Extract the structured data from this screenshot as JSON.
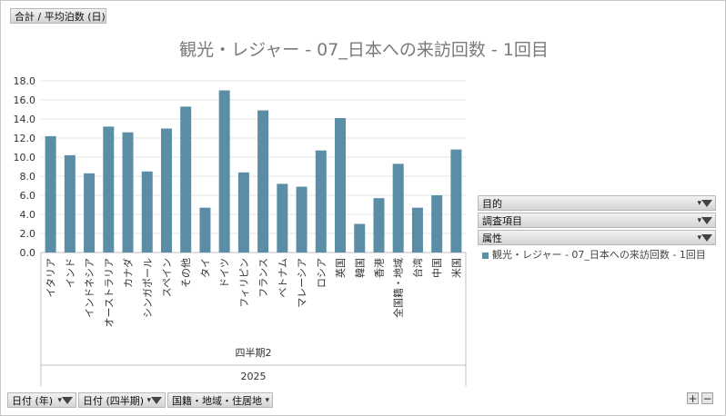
{
  "value_field": "合計 / 平均泊数 (日)",
  "filter_fields": [
    "目的",
    "調査項目",
    "属性"
  ],
  "axis_fields": [
    "日付 (年)",
    "日付 (四半期)",
    "国籍・地域・住居地"
  ],
  "zoom": {
    "plus": "+",
    "minus": "−"
  },
  "chart_data": {
    "type": "bar",
    "title": "観光・レジャー - 07_日本への来訪回数 - 1回目",
    "categories": [
      "イタリア",
      "インド",
      "インドネシア",
      "オーストラリア",
      "カナダ",
      "シンガポール",
      "スペイン",
      "その他",
      "タイ",
      "ドイツ",
      "フィリピン",
      "フランス",
      "ベトナム",
      "マレーシア",
      "ロシア",
      "英国",
      "韓国",
      "香港",
      "全国籍・地域",
      "台湾",
      "中国",
      "米国"
    ],
    "series": [
      {
        "name": "観光・レジャー - 07_日本への来訪回数 - 1回目",
        "values": [
          12.2,
          10.2,
          8.3,
          13.2,
          12.6,
          8.5,
          13.0,
          15.3,
          4.7,
          17.0,
          8.4,
          14.9,
          7.2,
          6.9,
          10.7,
          14.1,
          3.0,
          5.7,
          9.3,
          4.7,
          6.0,
          10.8
        ]
      }
    ],
    "ylim": [
      0,
      18
    ],
    "yticks": [
      "0.0",
      "2.0",
      "4.0",
      "6.0",
      "8.0",
      "10.0",
      "12.0",
      "14.0",
      "16.0",
      "18.0"
    ],
    "x_group_labels": [
      "四半期2",
      "2025"
    ],
    "grid": true,
    "legend_position": "right",
    "color": "#5b8ea6"
  }
}
